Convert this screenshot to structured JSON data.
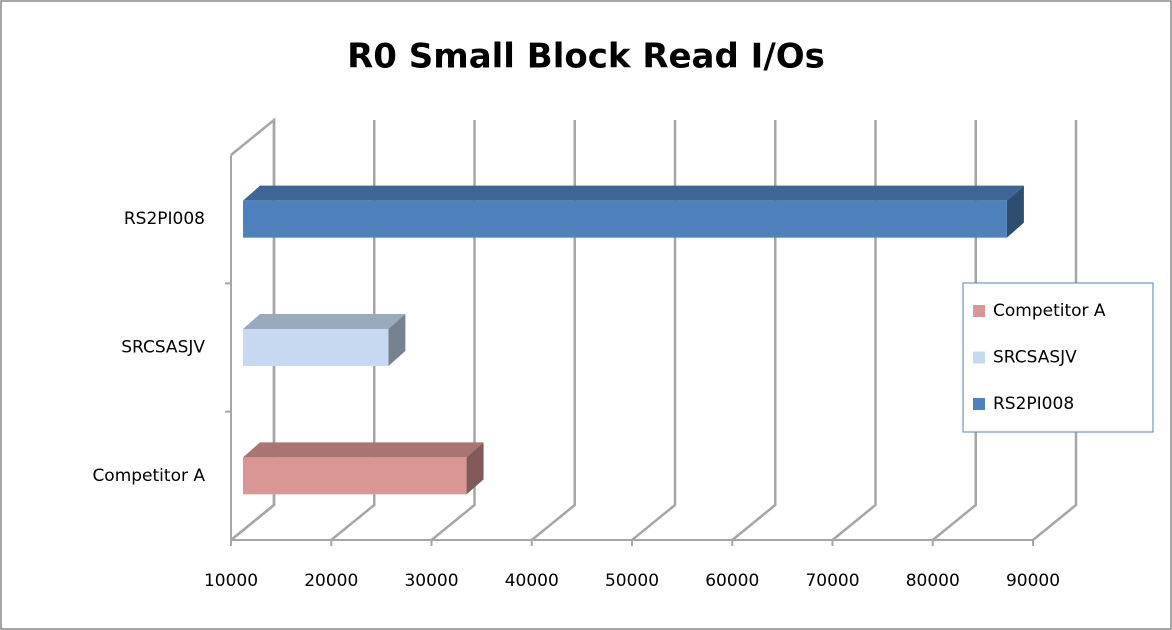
{
  "chart_data": {
    "type": "bar3d",
    "orientation": "horizontal",
    "title": "R0 Small Block Read I/Os",
    "categories": [
      "Competitor A",
      "SRCSASJV",
      "RS2PI008"
    ],
    "values": [
      32300,
      24500,
      86200
    ],
    "colors": [
      "#d99694",
      "#c6d9f1",
      "#4f81bd"
    ],
    "xlim": [
      10000,
      90000
    ],
    "xticks": [
      10000,
      20000,
      30000,
      40000,
      50000,
      60000,
      70000,
      80000,
      90000
    ],
    "grid": true,
    "legend": "right"
  }
}
